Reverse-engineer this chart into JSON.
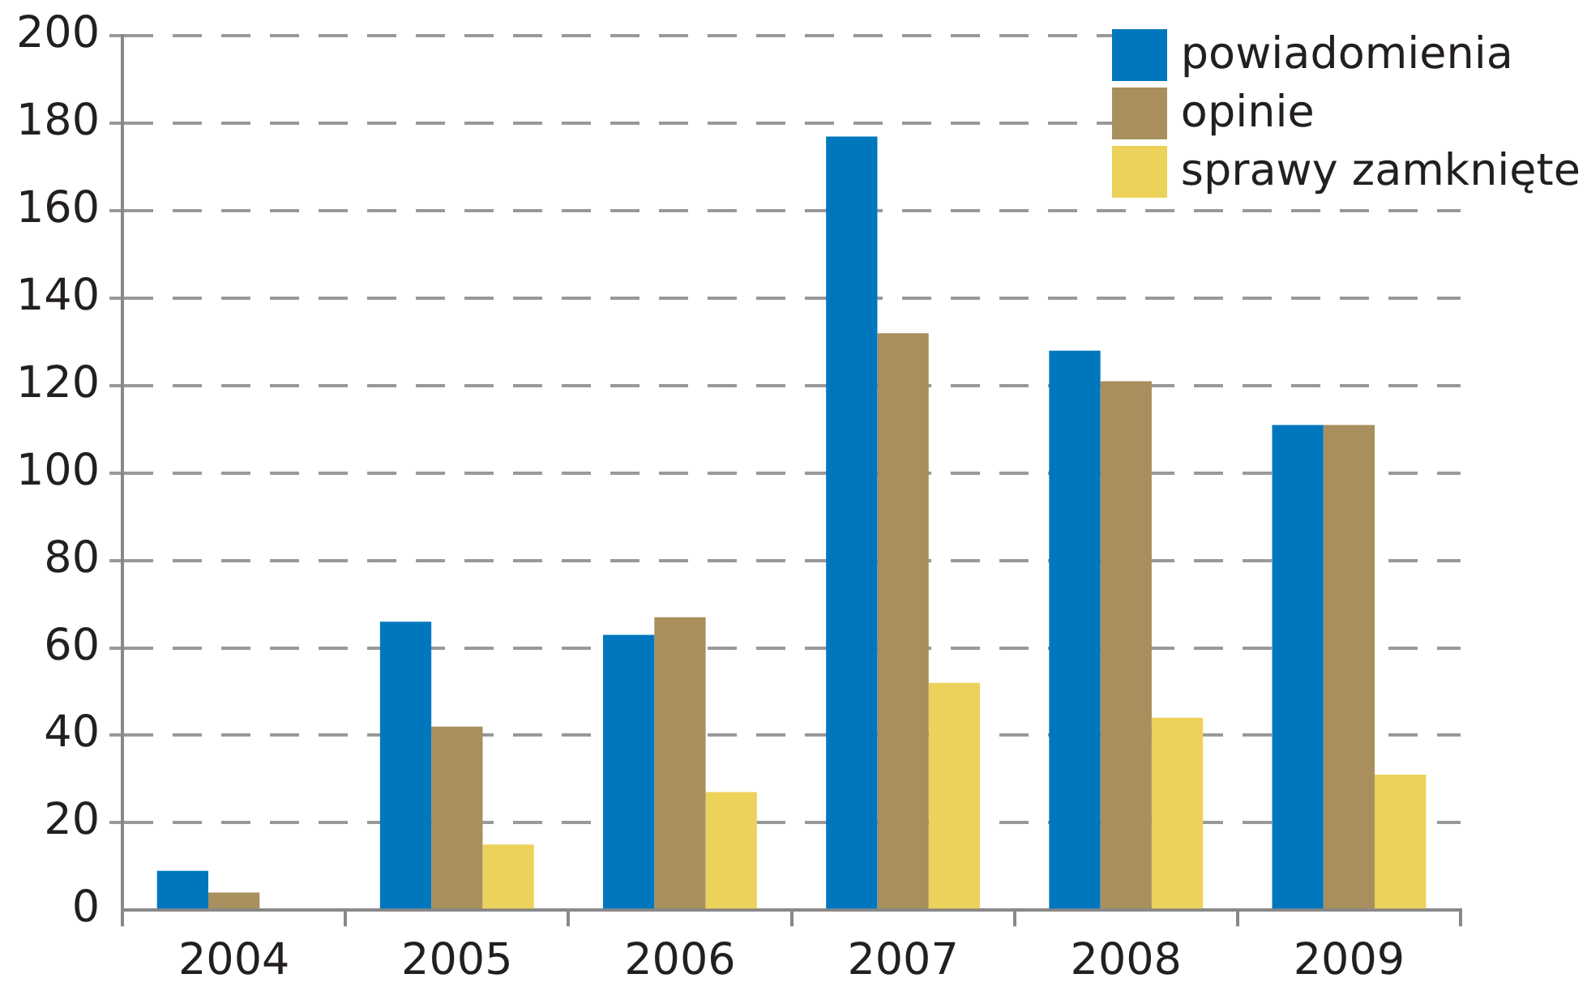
{
  "chart_data": {
    "type": "bar",
    "categories": [
      "2004",
      "2005",
      "2006",
      "2007",
      "2008",
      "2009"
    ],
    "series": [
      {
        "name": "powiadomienia",
        "color": "#0077bd",
        "values": [
          9,
          66,
          63,
          177,
          128,
          111
        ]
      },
      {
        "name": "opinie",
        "color": "#a88f5d",
        "values": [
          4,
          42,
          67,
          132,
          121,
          111
        ]
      },
      {
        "name": "sprawy zamknięte",
        "color": "#ecd25a",
        "values": [
          0,
          15,
          27,
          52,
          44,
          31
        ]
      }
    ],
    "ylim": [
      0,
      200
    ],
    "yticks": [
      0,
      20,
      40,
      60,
      80,
      100,
      120,
      140,
      160,
      180,
      200
    ],
    "grid": "y",
    "legend": "top right"
  }
}
